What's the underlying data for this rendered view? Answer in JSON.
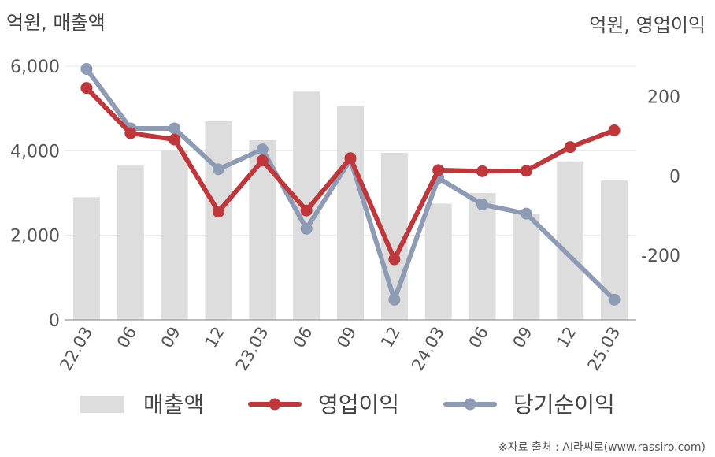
{
  "chart_data": {
    "type": "bar+line",
    "categories": [
      "22.03",
      "06",
      "09",
      "12",
      "23.03",
      "06",
      "09",
      "12",
      "24.03",
      "06",
      "09",
      "12",
      "25.03"
    ],
    "left_unit_label": "억원, 매출액",
    "right_unit_label": "억원, 영업이익",
    "left_axis": {
      "ylim": [
        0,
        6000
      ],
      "ticks": [
        "0",
        "2,000",
        "4,000",
        "6,000"
      ],
      "tick_values": [
        0,
        2000,
        4000,
        6000
      ]
    },
    "right_axis": {
      "ylim": [
        -363,
        277
      ],
      "ticks": [
        "-200",
        "0",
        "200"
      ],
      "tick_values": [
        -200,
        0,
        200
      ]
    },
    "grid": true,
    "series": [
      {
        "name": "매출액",
        "kind": "bar",
        "axis": "left",
        "color": "#dddddd",
        "values": [
          2900,
          3650,
          4000,
          4700,
          4250,
          5400,
          5050,
          3950,
          2750,
          3000,
          2500,
          3750,
          3300
        ]
      },
      {
        "name": "영업이익",
        "kind": "line",
        "axis": "right",
        "color": "#c0373b",
        "values": [
          222,
          108,
          92,
          -90,
          39,
          -87,
          45,
          -210,
          15,
          12,
          13,
          73,
          115
        ]
      },
      {
        "name": "당기순이익",
        "kind": "line",
        "axis": "right",
        "color": "#8e9bb5",
        "values": [
          270,
          120,
          120,
          17,
          67,
          -133,
          42,
          -312,
          -5,
          -72,
          -95,
          null,
          -312
        ]
      }
    ],
    "legend_position": "bottom",
    "source": "※자료 출처 : AI라씨로(www.rassiro.com)"
  }
}
